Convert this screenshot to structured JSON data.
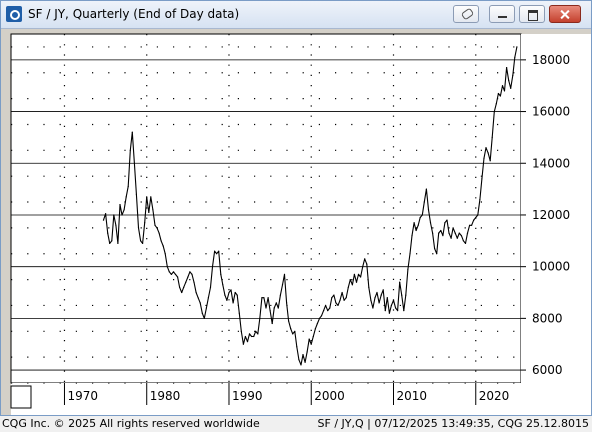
{
  "window": {
    "title": "SF / JY, Quarterly (End of Day data)",
    "icons": [
      "app-icon",
      "link-icon",
      "minimize-icon",
      "maximize-icon",
      "close-icon"
    ]
  },
  "footer": {
    "left": "CQG Inc. © 2025 All rights reserved worldwide",
    "right": "SF / JY,Q | 07/12/2025 13:49:35, CQG 25.12.8015"
  },
  "chart_data": {
    "type": "line",
    "title": "SF / JY, Quarterly (End of Day data)",
    "xlabel": "",
    "ylabel": "",
    "x_ticks": [
      "1970",
      "1980",
      "1990",
      "2000",
      "2010",
      "2020"
    ],
    "y_ticks": [
      "6000",
      "8000",
      "10000",
      "12000",
      "14000",
      "16000",
      "18000"
    ],
    "xlim": [
      1963.5,
      2025.5
    ],
    "ylim": [
      5500,
      19000
    ],
    "grid": true,
    "legend": "none",
    "series": [
      {
        "color": "#000000",
        "x": [
          1974.75,
          1975.0,
          1975.25,
          1975.5,
          1975.75,
          1976.0,
          1976.25,
          1976.5,
          1976.75,
          1977.0,
          1977.25,
          1977.5,
          1977.75,
          1978.0,
          1978.25,
          1978.5,
          1978.75,
          1979.0,
          1979.25,
          1979.5,
          1979.75,
          1980.0,
          1980.25,
          1980.5,
          1980.75,
          1981.0,
          1981.25,
          1981.5,
          1981.75,
          1982.0,
          1982.25,
          1982.5,
          1982.75,
          1983.0,
          1983.25,
          1983.5,
          1983.75,
          1984.0,
          1984.25,
          1984.5,
          1984.75,
          1985.0,
          1985.25,
          1985.5,
          1985.75,
          1986.0,
          1986.25,
          1986.5,
          1986.75,
          1987.0,
          1987.25,
          1987.5,
          1987.75,
          1988.0,
          1988.25,
          1988.5,
          1988.75,
          1989.0,
          1989.25,
          1989.5,
          1989.75,
          1990.0,
          1990.25,
          1990.5,
          1990.75,
          1991.0,
          1991.25,
          1991.5,
          1991.75,
          1992.0,
          1992.25,
          1992.5,
          1992.75,
          1993.0,
          1993.25,
          1993.5,
          1993.75,
          1994.0,
          1994.25,
          1994.5,
          1994.75,
          1995.0,
          1995.25,
          1995.5,
          1995.75,
          1996.0,
          1996.25,
          1996.5,
          1996.75,
          1997.0,
          1997.25,
          1997.5,
          1997.75,
          1998.0,
          1998.25,
          1998.5,
          1998.75,
          1999.0,
          1999.25,
          1999.5,
          1999.75,
          2000.0,
          2000.25,
          2000.5,
          2000.75,
          2001.0,
          2001.25,
          2001.5,
          2001.75,
          2002.0,
          2002.25,
          2002.5,
          2002.75,
          2003.0,
          2003.25,
          2003.5,
          2003.75,
          2004.0,
          2004.25,
          2004.5,
          2004.75,
          2005.0,
          2005.25,
          2005.5,
          2005.75,
          2006.0,
          2006.25,
          2006.5,
          2006.75,
          2007.0,
          2007.25,
          2007.5,
          2007.75,
          2008.0,
          2008.25,
          2008.5,
          2008.75,
          2009.0,
          2009.25,
          2009.5,
          2009.75,
          2010.0,
          2010.25,
          2010.5,
          2010.75,
          2011.0,
          2011.25,
          2011.5,
          2011.75,
          2012.0,
          2012.25,
          2012.5,
          2012.75,
          2013.0,
          2013.25,
          2013.5,
          2013.75,
          2014.0,
          2014.25,
          2014.5,
          2014.75,
          2015.0,
          2015.25,
          2015.5,
          2015.75,
          2016.0,
          2016.25,
          2016.5,
          2016.75,
          2017.0,
          2017.25,
          2017.5,
          2017.75,
          2018.0,
          2018.25,
          2018.5,
          2018.75,
          2019.0,
          2019.25,
          2019.5,
          2019.75,
          2020.0,
          2020.25,
          2020.5,
          2020.75,
          2021.0,
          2021.25,
          2021.5,
          2021.75,
          2022.0,
          2022.25,
          2022.5,
          2022.75,
          2023.0,
          2023.25,
          2023.5,
          2023.75,
          2024.0,
          2024.25,
          2024.5,
          2024.75,
          2025.0
        ],
        "y": [
          11800,
          12050,
          11300,
          10900,
          11000,
          12000,
          11600,
          10900,
          12400,
          12000,
          12200,
          12700,
          13100,
          14500,
          15200,
          14000,
          12800,
          11500,
          11000,
          10900,
          11700,
          12700,
          12100,
          12700,
          12200,
          11600,
          11500,
          11300,
          11000,
          10800,
          10500,
          10000,
          9800,
          9700,
          9800,
          9700,
          9600,
          9200,
          9000,
          9200,
          9400,
          9600,
          9800,
          9700,
          9400,
          9000,
          8800,
          8600,
          8200,
          8000,
          8400,
          8800,
          9200,
          10000,
          10600,
          10500,
          10600,
          9700,
          9300,
          8900,
          8700,
          9000,
          9100,
          8600,
          9000,
          8900,
          8200,
          7500,
          7000,
          7300,
          7100,
          7400,
          7300,
          7300,
          7500,
          7400,
          8000,
          8800,
          8800,
          8400,
          8800,
          8300,
          7800,
          8400,
          8600,
          8400,
          8900,
          9300,
          9700,
          8600,
          7900,
          7600,
          7400,
          7500,
          6900,
          6400,
          6200,
          6600,
          6300,
          6700,
          7200,
          7000,
          7300,
          7600,
          7800,
          8000,
          8100,
          8300,
          8500,
          8300,
          8400,
          8800,
          8900,
          8600,
          8500,
          8700,
          9000,
          8700,
          8800,
          9200,
          9500,
          9300,
          9700,
          9400,
          9700,
          9600,
          10000,
          10300,
          10100,
          9200,
          8700,
          8400,
          8800,
          9000,
          8600,
          8900,
          9100,
          8300,
          8800,
          8200,
          8500,
          8700,
          8400,
          8300,
          9400,
          8900,
          8300,
          8900,
          9900,
          10500,
          11200,
          11700,
          11400,
          11600,
          11900,
          12000,
          12500,
          13000,
          12200,
          11700,
          11300,
          10700,
          10500,
          11300,
          11400,
          11200,
          11700,
          11800,
          11300,
          11100,
          11500,
          11300,
          11100,
          11300,
          11200,
          11000,
          10900,
          11300,
          11600,
          11600,
          11800,
          11900,
          12000,
          12600,
          13400,
          14200,
          14600,
          14400,
          14100,
          15000,
          16000,
          16300,
          16700,
          16600,
          17000,
          16800,
          17700,
          17200,
          16900,
          17400,
          18100,
          18500
        ]
      }
    ]
  }
}
